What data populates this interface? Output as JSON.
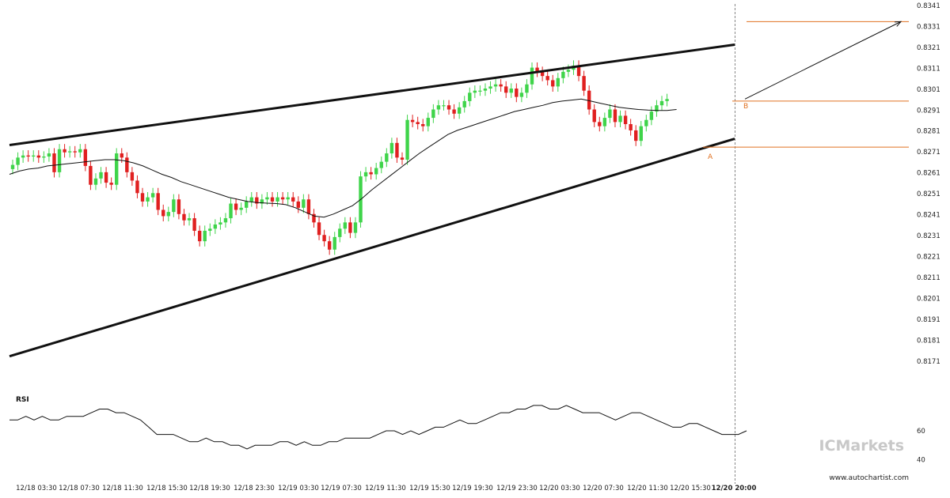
{
  "chart_data": {
    "type": "candlestick",
    "title": "",
    "colors": {
      "up": "#3fd44a",
      "down": "#e02020",
      "pattern_lines": "#111111",
      "moving_average": "#111111",
      "levels": "#e07020",
      "current_time_line": "#888888"
    },
    "y_axis": {
      "position": "right",
      "range": [
        0.8166,
        0.8341
      ],
      "ticks": [
        "0.8341",
        "0.8331",
        "0.8321",
        "0.8311",
        "0.8301",
        "0.8291",
        "0.8281",
        "0.8271",
        "0.8261",
        "0.8251",
        "0.8241",
        "0.8231",
        "0.8221",
        "0.8211",
        "0.8201",
        "0.8191",
        "0.8181",
        "0.8171"
      ]
    },
    "x_axis": {
      "ticks": [
        "12/18 03:30",
        "12/18 07:30",
        "12/18 11:30",
        "12/18 15:30",
        "12/18 19:30",
        "12/18 23:30",
        "12/19 03:30",
        "12/19 07:30",
        "12/19 11:30",
        "12/19 15:30",
        "12/19 19:30",
        "12/19 23:30",
        "12/20 03:30",
        "12/20 07:30",
        "12/20 11:30",
        "12/20 15:30",
        "12/20 20:00"
      ],
      "highlight": "12/20 20:00"
    },
    "candles_close": [
      0.82648,
      0.82683,
      0.82693,
      0.82688,
      0.82693,
      0.82683,
      0.82688,
      0.82703,
      0.82613,
      0.82723,
      0.82708,
      0.82713,
      0.82708,
      0.82723,
      0.82643,
      0.82553,
      0.82583,
      0.82613,
      0.82563,
      0.82553,
      0.82703,
      0.82683,
      0.82613,
      0.82573,
      0.82513,
      0.82473,
      0.82493,
      0.82513,
      0.82433,
      0.82403,
      0.82423,
      0.82483,
      0.82413,
      0.82383,
      0.82393,
      0.82333,
      0.82283,
      0.82333,
      0.82343,
      0.82363,
      0.82373,
      0.82393,
      0.82463,
      0.82433,
      0.82443,
      0.82473,
      0.82493,
      0.82463,
      0.82483,
      0.82493,
      0.82473,
      0.82493,
      0.82483,
      0.82493,
      0.82473,
      0.82443,
      0.82483,
      0.82413,
      0.82373,
      0.82313,
      0.82283,
      0.82243,
      0.82303,
      0.82343,
      0.82373,
      0.82323,
      0.82373,
      0.82593,
      0.82613,
      0.82603,
      0.82633,
      0.82663,
      0.82703,
      0.82753,
      0.82683,
      0.82673,
      0.82863,
      0.82853,
      0.82843,
      0.82833,
      0.82873,
      0.82913,
      0.82933,
      0.82933,
      0.82913,
      0.82893,
      0.82923,
      0.82953,
      0.82993,
      0.83003,
      0.83003,
      0.83013,
      0.83023,
      0.83033,
      0.83023,
      0.82993,
      0.83013,
      0.82973,
      0.82993,
      0.83033,
      0.83113,
      0.83093,
      0.83073,
      0.83053,
      0.83023,
      0.83063,
      0.83093,
      0.83103,
      0.83123,
      0.83073,
      0.83003,
      0.82913,
      0.82853,
      0.82833,
      0.82873,
      0.82913,
      0.82853,
      0.82883,
      0.82843,
      0.82813,
      0.82763,
      0.82833,
      0.82863,
      0.82903,
      0.82933,
      0.82953,
      0.82963
    ],
    "moving_average": [
      0.82603,
      0.82618,
      0.82628,
      0.82633,
      0.82643,
      0.82648,
      0.82653,
      0.82658,
      0.82663,
      0.82668,
      0.82673,
      0.82673,
      0.82668,
      0.82658,
      0.82643,
      0.82623,
      0.82603,
      0.82588,
      0.82568,
      0.82553,
      0.82538,
      0.82523,
      0.82508,
      0.82493,
      0.82483,
      0.82473,
      0.82468,
      0.82465,
      0.82463,
      0.82458,
      0.82443,
      0.82423,
      0.82403,
      0.82398,
      0.82413,
      0.82433,
      0.82453,
      0.82488,
      0.82528,
      0.82563,
      0.82598,
      0.82633,
      0.82668,
      0.82703,
      0.82733,
      0.82763,
      0.82793,
      0.82813,
      0.82828,
      0.82843,
      0.82858,
      0.82873,
      0.82888,
      0.82903,
      0.82913,
      0.82923,
      0.82933,
      0.82946,
      0.82953,
      0.82958,
      0.82963,
      0.82953,
      0.82943,
      0.82933,
      0.82923,
      0.82918,
      0.82913,
      0.8291,
      0.82908,
      0.82908,
      0.82913
    ],
    "rsi": {
      "title": "RSI",
      "ticks": [
        "60",
        "40"
      ],
      "values": [
        67.5,
        67.5,
        70,
        67.5,
        70,
        67.5,
        67.5,
        70,
        70,
        70,
        72.5,
        75,
        75,
        72.5,
        72.5,
        70,
        67.5,
        62.5,
        57.5,
        57.5,
        57.5,
        55,
        52.5,
        52.5,
        55,
        52.5,
        52.5,
        50,
        50,
        47.5,
        50,
        50,
        50,
        52.5,
        52.5,
        50,
        52.5,
        50,
        50,
        52.5,
        52.5,
        55,
        55,
        55,
        55,
        57.5,
        60,
        60,
        57.5,
        60,
        57.5,
        60,
        62.5,
        62.5,
        65,
        67.5,
        65,
        65,
        67.5,
        70,
        72.5,
        72.5,
        75,
        75,
        77.5,
        77.5,
        75,
        75,
        77.5,
        75,
        72.5,
        72.5,
        72.5,
        70,
        67.5,
        70,
        72.5,
        72.5,
        70,
        67.5,
        65,
        62.5,
        62.5,
        65,
        65,
        62.5,
        60,
        57.5,
        57.5,
        57.5,
        60
      ],
      "range": [
        30,
        90
      ]
    },
    "pattern": {
      "upper_line": [
        [
          0,
          0.82743
        ],
        [
          125,
          0.83223
        ]
      ],
      "lower_line": [
        [
          0,
          0.81733
        ],
        [
          125,
          0.82773
        ]
      ],
      "forecast_arrow": [
        [
          126,
          0.82963
        ],
        [
          151,
          0.83333
        ]
      ],
      "levels": [
        0.83333,
        0.82953,
        0.82733
      ],
      "point_labels": [
        "A",
        "B"
      ]
    }
  },
  "footer": {
    "credit": "www.autochartist.com",
    "brand": "ICMarkets"
  }
}
